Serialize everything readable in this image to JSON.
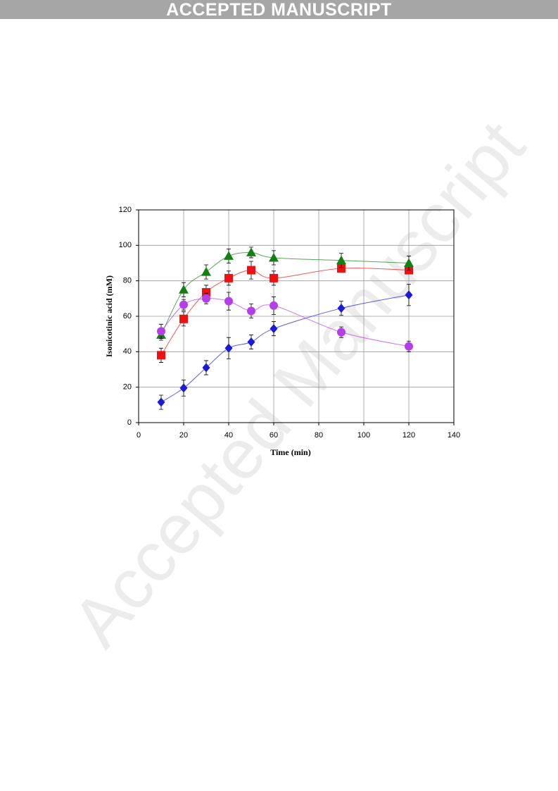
{
  "header": "ACCEPTED MANUSCRIPT",
  "watermark": "Accepted Manuscript",
  "chart_data": {
    "type": "scatter",
    "x_label": "Time (min)",
    "y_label": "Isonicotinic acid (mM)",
    "xlim": [
      0,
      140
    ],
    "xticks": [
      0,
      20,
      40,
      60,
      80,
      100,
      120,
      140
    ],
    "ylim": [
      0,
      120
    ],
    "yticks": [
      0,
      20,
      40,
      60,
      80,
      100,
      120
    ],
    "grid": true,
    "smooth": true,
    "x": [
      10,
      20,
      30,
      40,
      50,
      60,
      90,
      120
    ],
    "series": [
      {
        "color": "#1a1ad8",
        "marker": "diamond",
        "values": [
          11.5,
          19.5,
          31,
          42,
          45.5,
          53,
          64.5,
          72
        ],
        "errors": [
          4,
          4.5,
          4,
          6,
          4,
          4,
          4,
          6
        ]
      },
      {
        "color": "#ee1111",
        "marker": "square",
        "values": [
          38,
          58.5,
          73.5,
          81.5,
          86,
          81.5,
          87,
          86
        ],
        "errors": [
          4,
          4,
          4,
          4,
          5,
          4,
          2,
          2
        ]
      },
      {
        "color": "#138013",
        "marker": "triangle",
        "values": [
          49.5,
          75,
          85,
          94,
          96,
          93,
          91.5,
          90
        ],
        "errors": [
          3,
          4,
          4,
          4,
          3,
          4,
          4,
          4
        ]
      },
      {
        "color": "#b43ee8",
        "marker": "circle",
        "values": [
          51.5,
          66.5,
          70,
          68.5,
          63,
          66,
          51,
          43
        ],
        "errors": [
          4,
          3,
          3,
          5,
          4,
          5,
          3,
          3
        ]
      }
    ]
  }
}
